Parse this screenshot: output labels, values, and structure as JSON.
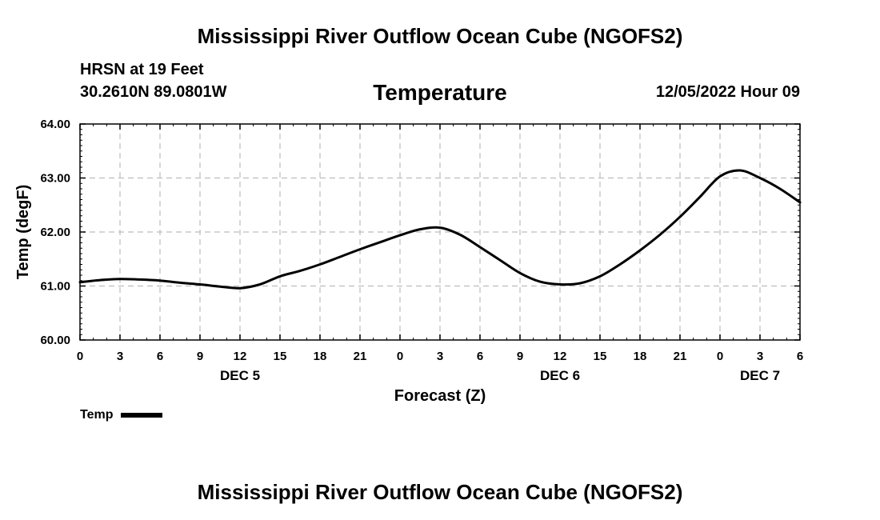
{
  "header": {
    "title": "Mississippi River Outflow Ocean Cube (NGOFS2)",
    "station_name": "HRSN at 19 Feet",
    "station_coords": "30.2610N  89.0801W",
    "timestamp": "12/05/2022 Hour 09"
  },
  "footer": {
    "title": "Mississippi River Outflow Ocean Cube (NGOFS2)"
  },
  "legend": {
    "label": "Temp"
  },
  "chart_data": {
    "type": "line",
    "title": "Temperature",
    "xlabel": "Forecast (Z)",
    "ylabel": "Temp (degF)",
    "xlim": [
      0,
      54
    ],
    "ylim": [
      60.0,
      64.0
    ],
    "yticks": [
      60.0,
      61.0,
      62.0,
      63.0,
      64.0
    ],
    "xtick_hours": [
      0,
      3,
      6,
      9,
      12,
      15,
      18,
      21,
      24,
      27,
      30,
      33,
      36,
      39,
      42,
      45,
      48,
      51,
      54
    ],
    "xtick_labels": [
      "0",
      "3",
      "6",
      "9",
      "12",
      "15",
      "18",
      "21",
      "0",
      "3",
      "6",
      "9",
      "12",
      "15",
      "18",
      "21",
      "0",
      "3",
      "6"
    ],
    "day_labels": [
      {
        "hour": 12,
        "label": "DEC 5"
      },
      {
        "hour": 36,
        "label": "DEC 6"
      },
      {
        "hour": 51,
        "label": "DEC 7"
      }
    ],
    "grid": true,
    "series": [
      {
        "name": "Temp",
        "color": "#000000",
        "x": [
          0,
          1.5,
          3,
          4.5,
          6,
          7.5,
          9,
          10.5,
          12,
          13.5,
          15,
          16.5,
          18,
          19.5,
          21,
          22.5,
          24,
          25.5,
          27,
          28.5,
          30,
          31.5,
          33,
          34.5,
          36,
          37.5,
          39,
          40.5,
          42,
          43.5,
          45,
          46.5,
          48,
          49.5,
          51,
          52.5,
          54
        ],
        "values": [
          61.07,
          61.11,
          61.13,
          61.12,
          61.1,
          61.06,
          61.03,
          60.99,
          60.96,
          61.03,
          61.18,
          61.28,
          61.4,
          61.54,
          61.68,
          61.81,
          61.94,
          62.05,
          62.08,
          61.95,
          61.72,
          61.48,
          61.24,
          61.08,
          61.03,
          61.05,
          61.18,
          61.4,
          61.66,
          61.95,
          62.28,
          62.65,
          63.03,
          63.14,
          63.0,
          62.8,
          62.55
        ]
      }
    ]
  }
}
